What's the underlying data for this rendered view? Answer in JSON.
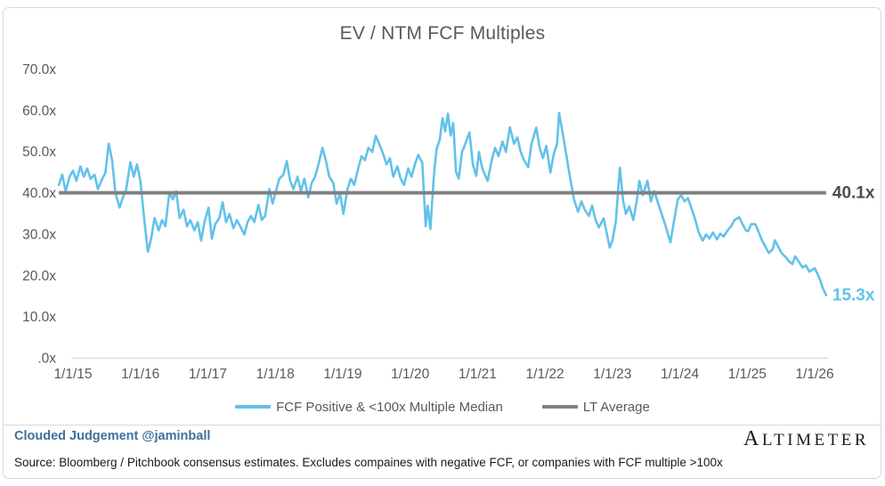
{
  "title": "EV / NTM FCF Multiples",
  "colors": {
    "series_blue": "#62c2ea",
    "average_gray": "#808080",
    "axis_text": "#595959",
    "axis_line": "#d9d9d9",
    "average_label_text": "#4d4d4d",
    "author_blue": "#41719c",
    "border": "#d9d9d9"
  },
  "chart_data": {
    "type": "line",
    "title": "EV / NTM FCF Multiples",
    "xlabel": "",
    "ylabel": "",
    "ylim": [
      0,
      70
    ],
    "xlim_years": [
      2014.79,
      2026.17
    ],
    "grid": "off",
    "legend_position": "bottom",
    "y_ticks": [
      {
        "label": "70.0x",
        "value": 70
      },
      {
        "label": "60.0x",
        "value": 60
      },
      {
        "label": "50.0x",
        "value": 50
      },
      {
        "label": "40.0x",
        "value": 40
      },
      {
        "label": "30.0x",
        "value": 30
      },
      {
        "label": "20.0x",
        "value": 20
      },
      {
        "label": "10.0x",
        "value": 10
      },
      {
        "label": ".0x",
        "value": 0
      }
    ],
    "x_ticks": [
      {
        "label": "1/1/15",
        "year": 2015
      },
      {
        "label": "1/1/16",
        "year": 2016
      },
      {
        "label": "1/1/17",
        "year": 2017
      },
      {
        "label": "1/1/18",
        "year": 2018
      },
      {
        "label": "1/1/19",
        "year": 2019
      },
      {
        "label": "1/1/20",
        "year": 2020
      },
      {
        "label": "1/1/21",
        "year": 2021
      },
      {
        "label": "1/1/22",
        "year": 2022
      },
      {
        "label": "1/1/23",
        "year": 2023
      },
      {
        "label": "1/1/24",
        "year": 2024
      },
      {
        "label": "1/1/25",
        "year": 2025
      },
      {
        "label": "1/1/26",
        "year": 2026
      }
    ],
    "series": [
      {
        "name": "FCF Positive & <100x Multiple Median",
        "type": "line",
        "color": "#62c2ea",
        "last_value": 15.3,
        "last_label": "15.3x",
        "points": [
          [
            2014.79,
            42
          ],
          [
            2014.84,
            44.5
          ],
          [
            2014.89,
            40.5
          ],
          [
            2014.95,
            44
          ],
          [
            2015.0,
            45.5
          ],
          [
            2015.05,
            43
          ],
          [
            2015.11,
            46.5
          ],
          [
            2015.16,
            44
          ],
          [
            2015.21,
            46
          ],
          [
            2015.26,
            43.5
          ],
          [
            2015.32,
            44.5
          ],
          [
            2015.37,
            41
          ],
          [
            2015.42,
            43
          ],
          [
            2015.48,
            45
          ],
          [
            2015.53,
            52
          ],
          [
            2015.58,
            48
          ],
          [
            2015.63,
            40
          ],
          [
            2015.69,
            36.5
          ],
          [
            2015.74,
            39
          ],
          [
            2015.79,
            41
          ],
          [
            2015.85,
            47.5
          ],
          [
            2015.9,
            44
          ],
          [
            2015.95,
            47
          ],
          [
            2016.0,
            43
          ],
          [
            2016.06,
            33
          ],
          [
            2016.11,
            25.8
          ],
          [
            2016.16,
            29
          ],
          [
            2016.21,
            34
          ],
          [
            2016.27,
            31
          ],
          [
            2016.32,
            33.5
          ],
          [
            2016.37,
            32
          ],
          [
            2016.43,
            40.3
          ],
          [
            2016.48,
            38.5
          ],
          [
            2016.53,
            40.5
          ],
          [
            2016.58,
            34
          ],
          [
            2016.64,
            36
          ],
          [
            2016.69,
            32
          ],
          [
            2016.74,
            33.5
          ],
          [
            2016.8,
            31
          ],
          [
            2016.85,
            33
          ],
          [
            2016.9,
            28.5
          ],
          [
            2016.95,
            33
          ],
          [
            2017.01,
            36.5
          ],
          [
            2017.06,
            29
          ],
          [
            2017.11,
            32.5
          ],
          [
            2017.17,
            34
          ],
          [
            2017.22,
            37.8
          ],
          [
            2017.27,
            33
          ],
          [
            2017.32,
            35
          ],
          [
            2017.38,
            31.5
          ],
          [
            2017.43,
            33.5
          ],
          [
            2017.48,
            32
          ],
          [
            2017.54,
            30
          ],
          [
            2017.59,
            33
          ],
          [
            2017.64,
            34.5
          ],
          [
            2017.69,
            33
          ],
          [
            2017.75,
            37.2
          ],
          [
            2017.8,
            33.5
          ],
          [
            2017.85,
            34.5
          ],
          [
            2017.91,
            41
          ],
          [
            2017.96,
            37.5
          ],
          [
            2018.01,
            40.5
          ],
          [
            2018.06,
            43.5
          ],
          [
            2018.12,
            44.5
          ],
          [
            2018.17,
            47.8
          ],
          [
            2018.22,
            43
          ],
          [
            2018.27,
            41
          ],
          [
            2018.33,
            44
          ],
          [
            2018.38,
            40.5
          ],
          [
            2018.43,
            43.5
          ],
          [
            2018.49,
            39
          ],
          [
            2018.54,
            42.5
          ],
          [
            2018.59,
            44
          ],
          [
            2018.64,
            47
          ],
          [
            2018.7,
            51
          ],
          [
            2018.75,
            48
          ],
          [
            2018.8,
            44
          ],
          [
            2018.86,
            42.5
          ],
          [
            2018.91,
            37.5
          ],
          [
            2018.96,
            40
          ],
          [
            2019.01,
            35
          ],
          [
            2019.07,
            41
          ],
          [
            2019.12,
            43.5
          ],
          [
            2019.17,
            42
          ],
          [
            2019.23,
            46
          ],
          [
            2019.28,
            49
          ],
          [
            2019.33,
            48
          ],
          [
            2019.38,
            51
          ],
          [
            2019.44,
            50
          ],
          [
            2019.49,
            53.9
          ],
          [
            2019.54,
            52
          ],
          [
            2019.6,
            49.5
          ],
          [
            2019.65,
            47
          ],
          [
            2019.7,
            48.5
          ],
          [
            2019.75,
            44
          ],
          [
            2019.81,
            46.5
          ],
          [
            2019.86,
            43.5
          ],
          [
            2019.91,
            42
          ],
          [
            2019.97,
            46
          ],
          [
            2020.02,
            44
          ],
          [
            2020.07,
            47
          ],
          [
            2020.12,
            49.3
          ],
          [
            2020.18,
            47.4
          ],
          [
            2020.23,
            32
          ],
          [
            2020.26,
            37
          ],
          [
            2020.3,
            31.3
          ],
          [
            2020.35,
            44
          ],
          [
            2020.39,
            50.6
          ],
          [
            2020.44,
            53
          ],
          [
            2020.48,
            58.2
          ],
          [
            2020.52,
            55
          ],
          [
            2020.56,
            59.3
          ],
          [
            2020.6,
            54
          ],
          [
            2020.64,
            57
          ],
          [
            2020.68,
            45.3
          ],
          [
            2020.72,
            43.5
          ],
          [
            2020.77,
            50
          ],
          [
            2020.82,
            52
          ],
          [
            2020.88,
            54.7
          ],
          [
            2020.93,
            47
          ],
          [
            2020.98,
            44.2
          ],
          [
            2021.02,
            50
          ],
          [
            2021.07,
            46
          ],
          [
            2021.15,
            43
          ],
          [
            2021.21,
            48
          ],
          [
            2021.26,
            51
          ],
          [
            2021.31,
            49
          ],
          [
            2021.37,
            52.5
          ],
          [
            2021.42,
            50
          ],
          [
            2021.48,
            56
          ],
          [
            2021.54,
            52
          ],
          [
            2021.59,
            53.5
          ],
          [
            2021.64,
            50
          ],
          [
            2021.69,
            48
          ],
          [
            2021.75,
            46.3
          ],
          [
            2021.8,
            52
          ],
          [
            2021.87,
            55.9
          ],
          [
            2021.92,
            51
          ],
          [
            2021.97,
            48.5
          ],
          [
            2022.02,
            51.5
          ],
          [
            2022.08,
            45
          ],
          [
            2022.13,
            49.5
          ],
          [
            2022.18,
            52
          ],
          [
            2022.21,
            59.4
          ],
          [
            2022.26,
            54.8
          ],
          [
            2022.32,
            49
          ],
          [
            2022.37,
            44
          ],
          [
            2022.43,
            38.5
          ],
          [
            2022.49,
            35.5
          ],
          [
            2022.54,
            38
          ],
          [
            2022.59,
            36
          ],
          [
            2022.65,
            34.5
          ],
          [
            2022.7,
            37
          ],
          [
            2022.75,
            33.5
          ],
          [
            2022.8,
            31.7
          ],
          [
            2022.87,
            33.9
          ],
          [
            2022.92,
            30
          ],
          [
            2022.96,
            26.8
          ],
          [
            2023.0,
            28.5
          ],
          [
            2023.05,
            33
          ],
          [
            2023.11,
            46.2
          ],
          [
            2023.16,
            38
          ],
          [
            2023.2,
            35
          ],
          [
            2023.25,
            36.8
          ],
          [
            2023.31,
            33.5
          ],
          [
            2023.36,
            38
          ],
          [
            2023.4,
            43
          ],
          [
            2023.45,
            39.5
          ],
          [
            2023.52,
            43
          ],
          [
            2023.57,
            38
          ],
          [
            2023.62,
            40.5
          ],
          [
            2023.68,
            37.5
          ],
          [
            2023.73,
            35
          ],
          [
            2023.78,
            32.5
          ],
          [
            2023.86,
            28.1
          ],
          [
            2023.91,
            33
          ],
          [
            2023.97,
            38.5
          ],
          [
            2024.02,
            39.5
          ],
          [
            2024.07,
            38
          ],
          [
            2024.12,
            38.8
          ],
          [
            2024.18,
            36
          ],
          [
            2024.23,
            33.5
          ],
          [
            2024.28,
            30.5
          ],
          [
            2024.34,
            28.5
          ],
          [
            2024.39,
            30
          ],
          [
            2024.44,
            29
          ],
          [
            2024.49,
            30.5
          ],
          [
            2024.55,
            28.8
          ],
          [
            2024.6,
            30.2
          ],
          [
            2024.65,
            29.5
          ],
          [
            2024.71,
            31
          ],
          [
            2024.76,
            32
          ],
          [
            2024.81,
            33.5
          ],
          [
            2024.88,
            34.2
          ],
          [
            2024.93,
            32.5
          ],
          [
            2024.98,
            31
          ],
          [
            2025.01,
            30.8
          ],
          [
            2025.06,
            32.5
          ],
          [
            2025.12,
            32.5
          ],
          [
            2025.17,
            30.5
          ],
          [
            2025.22,
            28.5
          ],
          [
            2025.27,
            27
          ],
          [
            2025.32,
            25.5
          ],
          [
            2025.38,
            26.5
          ],
          [
            2025.41,
            28.6
          ],
          [
            2025.46,
            27
          ],
          [
            2025.51,
            25.5
          ],
          [
            2025.57,
            24.5
          ],
          [
            2025.62,
            23.5
          ],
          [
            2025.67,
            22.8
          ],
          [
            2025.71,
            24.7
          ],
          [
            2025.76,
            23.5
          ],
          [
            2025.82,
            22
          ],
          [
            2025.87,
            22.5
          ],
          [
            2025.92,
            21
          ],
          [
            2025.97,
            21.5
          ],
          [
            2026.0,
            21.8
          ],
          [
            2026.04,
            20.5
          ],
          [
            2026.08,
            19
          ],
          [
            2026.12,
            17
          ],
          [
            2026.17,
            15.3
          ]
        ]
      },
      {
        "name": "LT Average",
        "type": "hline",
        "color": "#808080",
        "value": 40.1,
        "label": "40.1x"
      }
    ]
  },
  "footer": {
    "author": "Clouded Judgement @jaminball",
    "source": "Source: Bloomberg / Pitchbook consensus estimates. Excludes compaines with negative FCF, or companies with FCF multiple >100x",
    "logo_first_letter": "A",
    "logo_rest": "LTIMETER"
  }
}
